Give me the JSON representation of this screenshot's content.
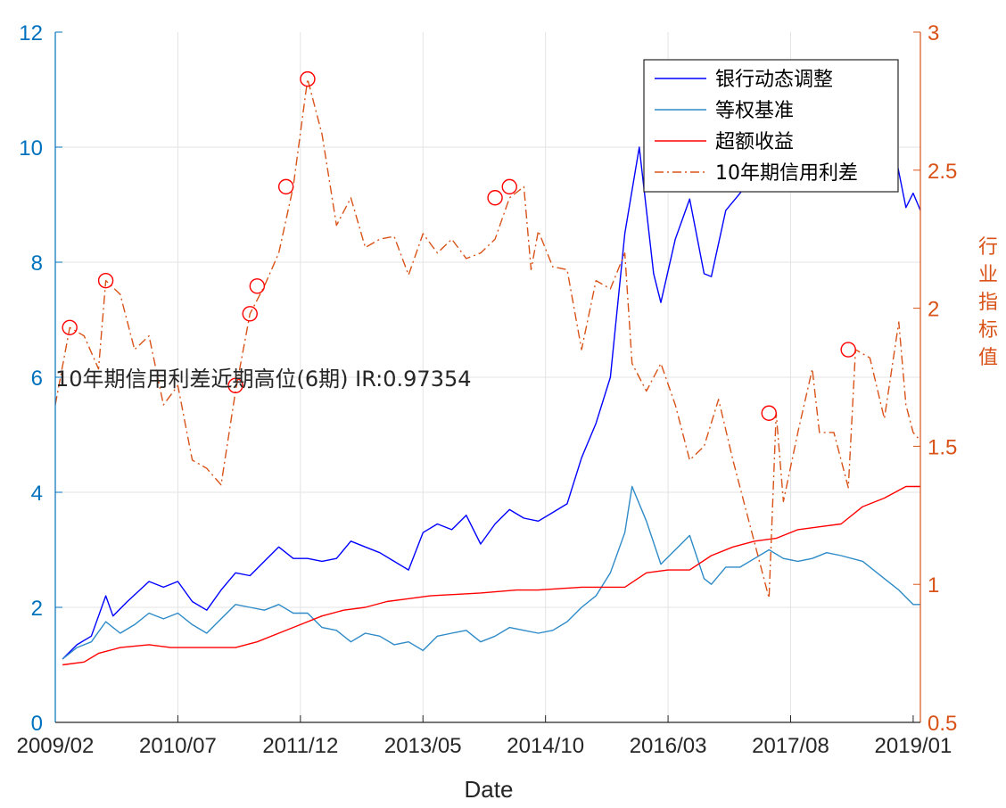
{
  "chart_data": {
    "type": "line",
    "title": "",
    "xlabel": "Date",
    "ylabel_left": "",
    "ylabel_right": "行业指标值",
    "annotation": "10年期信用利差近期高位(6期)  IR:0.97354",
    "x_ticks": [
      "2009/02",
      "2010/07",
      "2011/12",
      "2013/05",
      "2014/10",
      "2016/03",
      "2017/08",
      "2019/01"
    ],
    "x_range": [
      "2009/02",
      "2019/02"
    ],
    "ylim_left": [
      0,
      12
    ],
    "yticks_left": [
      0,
      2,
      4,
      6,
      8,
      10,
      12
    ],
    "ylim_right": [
      0.5,
      3
    ],
    "yticks_right": [
      0.5,
      1,
      1.5,
      2,
      2.5,
      3
    ],
    "grid": true,
    "legend_position": "top-right",
    "series": [
      {
        "name": "银行动态调整",
        "axis": "left",
        "color": "#0000FF",
        "style": "solid",
        "points": [
          [
            "2009/03",
            1.1
          ],
          [
            "2009/05",
            1.35
          ],
          [
            "2009/07",
            1.5
          ],
          [
            "2009/09",
            2.2
          ],
          [
            "2009/10",
            1.85
          ],
          [
            "2009/12",
            2.1
          ],
          [
            "2010/03",
            2.45
          ],
          [
            "2010/05",
            2.35
          ],
          [
            "2010/07",
            2.45
          ],
          [
            "2010/09",
            2.1
          ],
          [
            "2010/11",
            1.95
          ],
          [
            "2011/01",
            2.3
          ],
          [
            "2011/03",
            2.6
          ],
          [
            "2011/05",
            2.55
          ],
          [
            "2011/07",
            2.8
          ],
          [
            "2011/09",
            3.05
          ],
          [
            "2011/11",
            2.85
          ],
          [
            "2012/01",
            2.85
          ],
          [
            "2012/03",
            2.8
          ],
          [
            "2012/05",
            2.85
          ],
          [
            "2012/07",
            3.15
          ],
          [
            "2012/09",
            3.05
          ],
          [
            "2012/11",
            2.95
          ],
          [
            "2013/01",
            2.8
          ],
          [
            "2013/03",
            2.65
          ],
          [
            "2013/05",
            3.3
          ],
          [
            "2013/07",
            3.45
          ],
          [
            "2013/09",
            3.35
          ],
          [
            "2013/11",
            3.6
          ],
          [
            "2014/01",
            3.1
          ],
          [
            "2014/03",
            3.45
          ],
          [
            "2014/05",
            3.7
          ],
          [
            "2014/07",
            3.55
          ],
          [
            "2014/09",
            3.5
          ],
          [
            "2014/11",
            3.65
          ],
          [
            "2015/01",
            3.8
          ],
          [
            "2015/03",
            4.6
          ],
          [
            "2015/05",
            5.2
          ],
          [
            "2015/07",
            6.0
          ],
          [
            "2015/09",
            8.5
          ],
          [
            "2015/11",
            10.0
          ],
          [
            "2016/01",
            7.8
          ],
          [
            "2016/02",
            7.3
          ],
          [
            "2016/04",
            8.4
          ],
          [
            "2016/06",
            9.1
          ],
          [
            "2016/08",
            7.8
          ],
          [
            "2016/09",
            7.75
          ],
          [
            "2016/11",
            8.9
          ],
          [
            "2017/01",
            9.2
          ],
          [
            "2017/03",
            9.6
          ],
          [
            "2017/06",
            10.4
          ],
          [
            "2017/09",
            10.9
          ],
          [
            "2017/11",
            11.2
          ],
          [
            "2018/02",
            11.5
          ],
          [
            "2018/04",
            11.4
          ],
          [
            "2018/07",
            10.8
          ],
          [
            "2018/10",
            10.2
          ],
          [
            "2018/12",
            8.95
          ],
          [
            "2019/01",
            9.2
          ],
          [
            "2019/02",
            8.9
          ]
        ]
      },
      {
        "name": "等权基准",
        "axis": "left",
        "color": "#2E8BC8",
        "style": "solid",
        "points": [
          [
            "2009/03",
            1.1
          ],
          [
            "2009/05",
            1.3
          ],
          [
            "2009/07",
            1.4
          ],
          [
            "2009/09",
            1.75
          ],
          [
            "2009/11",
            1.55
          ],
          [
            "2010/01",
            1.7
          ],
          [
            "2010/03",
            1.9
          ],
          [
            "2010/05",
            1.8
          ],
          [
            "2010/07",
            1.9
          ],
          [
            "2010/09",
            1.7
          ],
          [
            "2010/11",
            1.55
          ],
          [
            "2011/01",
            1.8
          ],
          [
            "2011/03",
            2.05
          ],
          [
            "2011/05",
            2.0
          ],
          [
            "2011/07",
            1.95
          ],
          [
            "2011/09",
            2.05
          ],
          [
            "2011/11",
            1.9
          ],
          [
            "2012/01",
            1.9
          ],
          [
            "2012/03",
            1.65
          ],
          [
            "2012/05",
            1.6
          ],
          [
            "2012/07",
            1.4
          ],
          [
            "2012/09",
            1.55
          ],
          [
            "2012/11",
            1.5
          ],
          [
            "2013/01",
            1.35
          ],
          [
            "2013/03",
            1.4
          ],
          [
            "2013/05",
            1.25
          ],
          [
            "2013/07",
            1.5
          ],
          [
            "2013/09",
            1.55
          ],
          [
            "2013/11",
            1.6
          ],
          [
            "2014/01",
            1.4
          ],
          [
            "2014/03",
            1.5
          ],
          [
            "2014/05",
            1.65
          ],
          [
            "2014/07",
            1.6
          ],
          [
            "2014/09",
            1.55
          ],
          [
            "2014/11",
            1.6
          ],
          [
            "2015/01",
            1.75
          ],
          [
            "2015/03",
            2.0
          ],
          [
            "2015/05",
            2.2
          ],
          [
            "2015/07",
            2.6
          ],
          [
            "2015/09",
            3.3
          ],
          [
            "2015/10",
            4.1
          ],
          [
            "2015/12",
            3.5
          ],
          [
            "2016/02",
            2.75
          ],
          [
            "2016/04",
            3.0
          ],
          [
            "2016/06",
            3.25
          ],
          [
            "2016/08",
            2.5
          ],
          [
            "2016/09",
            2.4
          ],
          [
            "2016/11",
            2.7
          ],
          [
            "2017/01",
            2.7
          ],
          [
            "2017/03",
            2.85
          ],
          [
            "2017/05",
            3.0
          ],
          [
            "2017/07",
            2.85
          ],
          [
            "2017/09",
            2.8
          ],
          [
            "2017/11",
            2.85
          ],
          [
            "2018/01",
            2.95
          ],
          [
            "2018/03",
            2.9
          ],
          [
            "2018/06",
            2.8
          ],
          [
            "2018/09",
            2.5
          ],
          [
            "2018/11",
            2.3
          ],
          [
            "2019/01",
            2.05
          ],
          [
            "2019/02",
            2.05
          ]
        ]
      },
      {
        "name": "超额收益",
        "axis": "left",
        "color": "#FF0000",
        "style": "solid",
        "points": [
          [
            "2009/03",
            1.0
          ],
          [
            "2009/06",
            1.05
          ],
          [
            "2009/08",
            1.2
          ],
          [
            "2009/11",
            1.3
          ],
          [
            "2010/03",
            1.35
          ],
          [
            "2010/06",
            1.3
          ],
          [
            "2010/09",
            1.3
          ],
          [
            "2011/03",
            1.3
          ],
          [
            "2011/06",
            1.4
          ],
          [
            "2011/09",
            1.55
          ],
          [
            "2011/12",
            1.7
          ],
          [
            "2012/03",
            1.85
          ],
          [
            "2012/06",
            1.95
          ],
          [
            "2012/09",
            2.0
          ],
          [
            "2012/12",
            2.1
          ],
          [
            "2013/03",
            2.15
          ],
          [
            "2013/06",
            2.2
          ],
          [
            "2014/01",
            2.25
          ],
          [
            "2014/06",
            2.3
          ],
          [
            "2014/09",
            2.3
          ],
          [
            "2015/03",
            2.35
          ],
          [
            "2015/06",
            2.35
          ],
          [
            "2015/09",
            2.35
          ],
          [
            "2015/12",
            2.6
          ],
          [
            "2016/03",
            2.65
          ],
          [
            "2016/06",
            2.65
          ],
          [
            "2016/09",
            2.9
          ],
          [
            "2016/12",
            3.05
          ],
          [
            "2017/03",
            3.15
          ],
          [
            "2017/06",
            3.2
          ],
          [
            "2017/09",
            3.35
          ],
          [
            "2017/12",
            3.4
          ],
          [
            "2018/03",
            3.45
          ],
          [
            "2018/06",
            3.75
          ],
          [
            "2018/09",
            3.9
          ],
          [
            "2018/12",
            4.1
          ],
          [
            "2019/02",
            4.1
          ]
        ]
      },
      {
        "name": "10年期信用利差",
        "axis": "right",
        "color": "#D95319",
        "style": "dashdot",
        "points": [
          [
            "2009/02",
            1.65
          ],
          [
            "2009/04",
            1.93
          ],
          [
            "2009/06",
            1.9
          ],
          [
            "2009/08",
            1.78
          ],
          [
            "2009/09",
            2.1
          ],
          [
            "2009/11",
            2.05
          ],
          [
            "2010/01",
            1.85
          ],
          [
            "2010/03",
            1.9
          ],
          [
            "2010/05",
            1.65
          ],
          [
            "2010/07",
            1.72
          ],
          [
            "2010/09",
            1.45
          ],
          [
            "2010/11",
            1.42
          ],
          [
            "2011/01",
            1.36
          ],
          [
            "2011/03",
            1.7
          ],
          [
            "2011/05",
            1.98
          ],
          [
            "2011/07",
            2.08
          ],
          [
            "2011/09",
            2.2
          ],
          [
            "2011/11",
            2.44
          ],
          [
            "2012/01",
            2.83
          ],
          [
            "2012/03",
            2.63
          ],
          [
            "2012/05",
            2.3
          ],
          [
            "2012/07",
            2.4
          ],
          [
            "2012/09",
            2.22
          ],
          [
            "2012/11",
            2.25
          ],
          [
            "2013/01",
            2.26
          ],
          [
            "2013/03",
            2.12
          ],
          [
            "2013/05",
            2.27
          ],
          [
            "2013/07",
            2.2
          ],
          [
            "2013/09",
            2.25
          ],
          [
            "2013/11",
            2.18
          ],
          [
            "2014/01",
            2.2
          ],
          [
            "2014/03",
            2.25
          ],
          [
            "2014/05",
            2.4
          ],
          [
            "2014/07",
            2.44
          ],
          [
            "2014/08",
            2.14
          ],
          [
            "2014/09",
            2.28
          ],
          [
            "2014/11",
            2.15
          ],
          [
            "2015/01",
            2.14
          ],
          [
            "2015/03",
            1.85
          ],
          [
            "2015/05",
            2.1
          ],
          [
            "2015/07",
            2.07
          ],
          [
            "2015/09",
            2.2
          ],
          [
            "2015/10",
            1.8
          ],
          [
            "2015/12",
            1.7
          ],
          [
            "2016/02",
            1.8
          ],
          [
            "2016/04",
            1.65
          ],
          [
            "2016/06",
            1.45
          ],
          [
            "2016/08",
            1.5
          ],
          [
            "2016/10",
            1.67
          ],
          [
            "2016/12",
            1.45
          ],
          [
            "2017/02",
            1.25
          ],
          [
            "2017/05",
            0.95
          ],
          [
            "2017/06",
            1.62
          ],
          [
            "2017/07",
            1.3
          ],
          [
            "2017/09",
            1.55
          ],
          [
            "2017/11",
            1.78
          ],
          [
            "2017/12",
            1.55
          ],
          [
            "2018/02",
            1.55
          ],
          [
            "2018/04",
            1.35
          ],
          [
            "2018/05",
            1.85
          ],
          [
            "2018/07",
            1.82
          ],
          [
            "2018/09",
            1.6
          ],
          [
            "2018/11",
            1.95
          ],
          [
            "2018/12",
            1.65
          ],
          [
            "2019/01",
            1.55
          ],
          [
            "2019/02",
            1.52
          ]
        ]
      }
    ],
    "markers": {
      "series": "10年期信用利差",
      "color": "#FF0000",
      "shape": "circle",
      "points": [
        [
          "2009/04",
          1.93
        ],
        [
          "2009/09",
          2.1
        ],
        [
          "2011/05",
          1.98
        ],
        [
          "2011/06",
          2.08
        ],
        [
          "2011/03",
          1.72
        ],
        [
          "2011/10",
          2.44
        ],
        [
          "2012/01",
          2.83
        ],
        [
          "2014/03",
          2.4
        ],
        [
          "2014/05",
          2.44
        ],
        [
          "2017/05",
          1.62
        ],
        [
          "2018/04",
          1.85
        ]
      ]
    }
  }
}
